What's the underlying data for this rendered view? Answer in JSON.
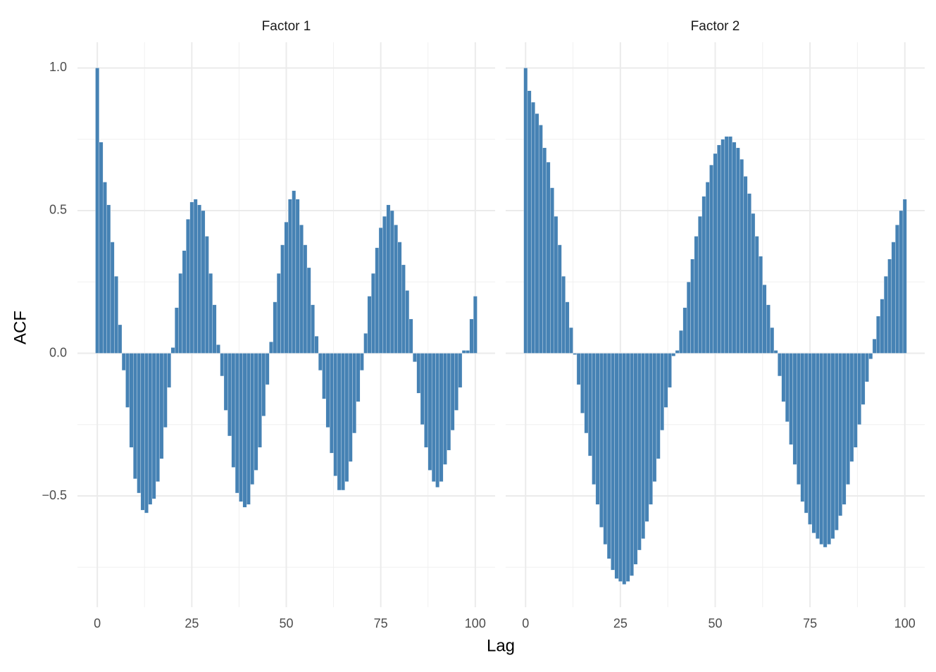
{
  "chart_data": [
    {
      "type": "bar",
      "title": "Factor 1",
      "x_label": "Lag",
      "y_label": "ACF",
      "color": "#4682b4",
      "x": [
        0,
        1,
        2,
        3,
        4,
        5,
        6,
        7,
        8,
        9,
        10,
        11,
        12,
        13,
        14,
        15,
        16,
        17,
        18,
        19,
        20,
        21,
        22,
        23,
        24,
        25,
        26,
        27,
        28,
        29,
        30,
        31,
        32,
        33,
        34,
        35,
        36,
        37,
        38,
        39,
        40,
        41,
        42,
        43,
        44,
        45,
        46,
        47,
        48,
        49,
        50,
        51,
        52,
        53,
        54,
        55,
        56,
        57,
        58,
        59,
        60,
        61,
        62,
        63,
        64,
        65,
        66,
        67,
        68,
        69,
        70,
        71,
        72,
        73,
        74,
        75,
        76,
        77,
        78,
        79,
        80,
        81,
        82,
        83,
        84,
        85,
        86,
        87,
        88,
        89,
        90,
        91,
        92,
        93,
        94,
        95,
        96,
        97,
        98,
        99,
        100
      ],
      "values": [
        1.0,
        0.74,
        0.6,
        0.52,
        0.39,
        0.27,
        0.1,
        -0.06,
        -0.19,
        -0.33,
        -0.44,
        -0.49,
        -0.55,
        -0.56,
        -0.53,
        -0.51,
        -0.45,
        -0.37,
        -0.26,
        -0.12,
        0.02,
        0.16,
        0.28,
        0.36,
        0.47,
        0.53,
        0.54,
        0.52,
        0.5,
        0.41,
        0.28,
        0.17,
        0.03,
        -0.08,
        -0.2,
        -0.29,
        -0.4,
        -0.49,
        -0.52,
        -0.54,
        -0.53,
        -0.46,
        -0.41,
        -0.33,
        -0.22,
        -0.11,
        0.04,
        0.18,
        0.28,
        0.38,
        0.46,
        0.54,
        0.57,
        0.54,
        0.45,
        0.38,
        0.3,
        0.17,
        0.06,
        -0.06,
        -0.16,
        -0.26,
        -0.35,
        -0.43,
        -0.48,
        -0.48,
        -0.45,
        -0.38,
        -0.28,
        -0.17,
        -0.06,
        0.07,
        0.2,
        0.28,
        0.37,
        0.44,
        0.48,
        0.52,
        0.5,
        0.45,
        0.39,
        0.31,
        0.22,
        0.12,
        -0.03,
        -0.14,
        -0.25,
        -0.33,
        -0.41,
        -0.45,
        -0.47,
        -0.45,
        -0.39,
        -0.34,
        -0.27,
        -0.2,
        -0.12,
        0.01,
        0.01,
        0.12,
        0.2
      ],
      "xlim": [
        -5.25,
        105.25
      ],
      "ylim": [
        -0.89,
        1.09
      ],
      "xticks": [
        0,
        25,
        50,
        75,
        100
      ],
      "yticks": [
        {
          "value": -0.5,
          "label": "−0.5"
        },
        {
          "value": 0,
          "label": "0.0"
        },
        0.5,
        {
          "value": 1,
          "label": "1.0"
        }
      ],
      "grid": true
    },
    {
      "type": "bar",
      "title": "Factor 2",
      "color": "#4682b4",
      "x": [
        0,
        1,
        2,
        3,
        4,
        5,
        6,
        7,
        8,
        9,
        10,
        11,
        12,
        13,
        14,
        15,
        16,
        17,
        18,
        19,
        20,
        21,
        22,
        23,
        24,
        25,
        26,
        27,
        28,
        29,
        30,
        31,
        32,
        33,
        34,
        35,
        36,
        37,
        38,
        39,
        40,
        41,
        42,
        43,
        44,
        45,
        46,
        47,
        48,
        49,
        50,
        51,
        52,
        53,
        54,
        55,
        56,
        57,
        58,
        59,
        60,
        61,
        62,
        63,
        64,
        65,
        66,
        67,
        68,
        69,
        70,
        71,
        72,
        73,
        74,
        75,
        76,
        77,
        78,
        79,
        80,
        81,
        82,
        83,
        84,
        85,
        86,
        87,
        88,
        89,
        90,
        91,
        92,
        93,
        94,
        95,
        96,
        97,
        98,
        99,
        100
      ],
      "values": [
        1.0,
        0.92,
        0.88,
        0.84,
        0.8,
        0.72,
        0.67,
        0.58,
        0.48,
        0.38,
        0.27,
        0.18,
        0.09,
        -0.005,
        -0.11,
        -0.21,
        -0.28,
        -0.36,
        -0.46,
        -0.53,
        -0.61,
        -0.67,
        -0.72,
        -0.76,
        -0.79,
        -0.8,
        -0.81,
        -0.8,
        -0.78,
        -0.74,
        -0.69,
        -0.65,
        -0.59,
        -0.53,
        -0.45,
        -0.37,
        -0.27,
        -0.19,
        -0.12,
        -0.01,
        0.01,
        0.08,
        0.16,
        0.25,
        0.33,
        0.41,
        0.48,
        0.55,
        0.6,
        0.66,
        0.7,
        0.73,
        0.75,
        0.76,
        0.76,
        0.74,
        0.72,
        0.68,
        0.62,
        0.56,
        0.49,
        0.41,
        0.34,
        0.24,
        0.17,
        0.09,
        0.01,
        -0.08,
        -0.17,
        -0.24,
        -0.32,
        -0.39,
        -0.46,
        -0.52,
        -0.56,
        -0.6,
        -0.63,
        -0.65,
        -0.67,
        -0.68,
        -0.67,
        -0.65,
        -0.62,
        -0.57,
        -0.53,
        -0.46,
        -0.38,
        -0.33,
        -0.25,
        -0.18,
        -0.1,
        -0.02,
        0.05,
        0.13,
        0.19,
        0.27,
        0.33,
        0.39,
        0.45,
        0.5,
        0.54
      ],
      "xlim": [
        -5.25,
        105.25
      ],
      "ylim": [
        -0.89,
        1.09
      ],
      "xticks": [
        0,
        25,
        50,
        75,
        100
      ],
      "grid": true
    }
  ]
}
